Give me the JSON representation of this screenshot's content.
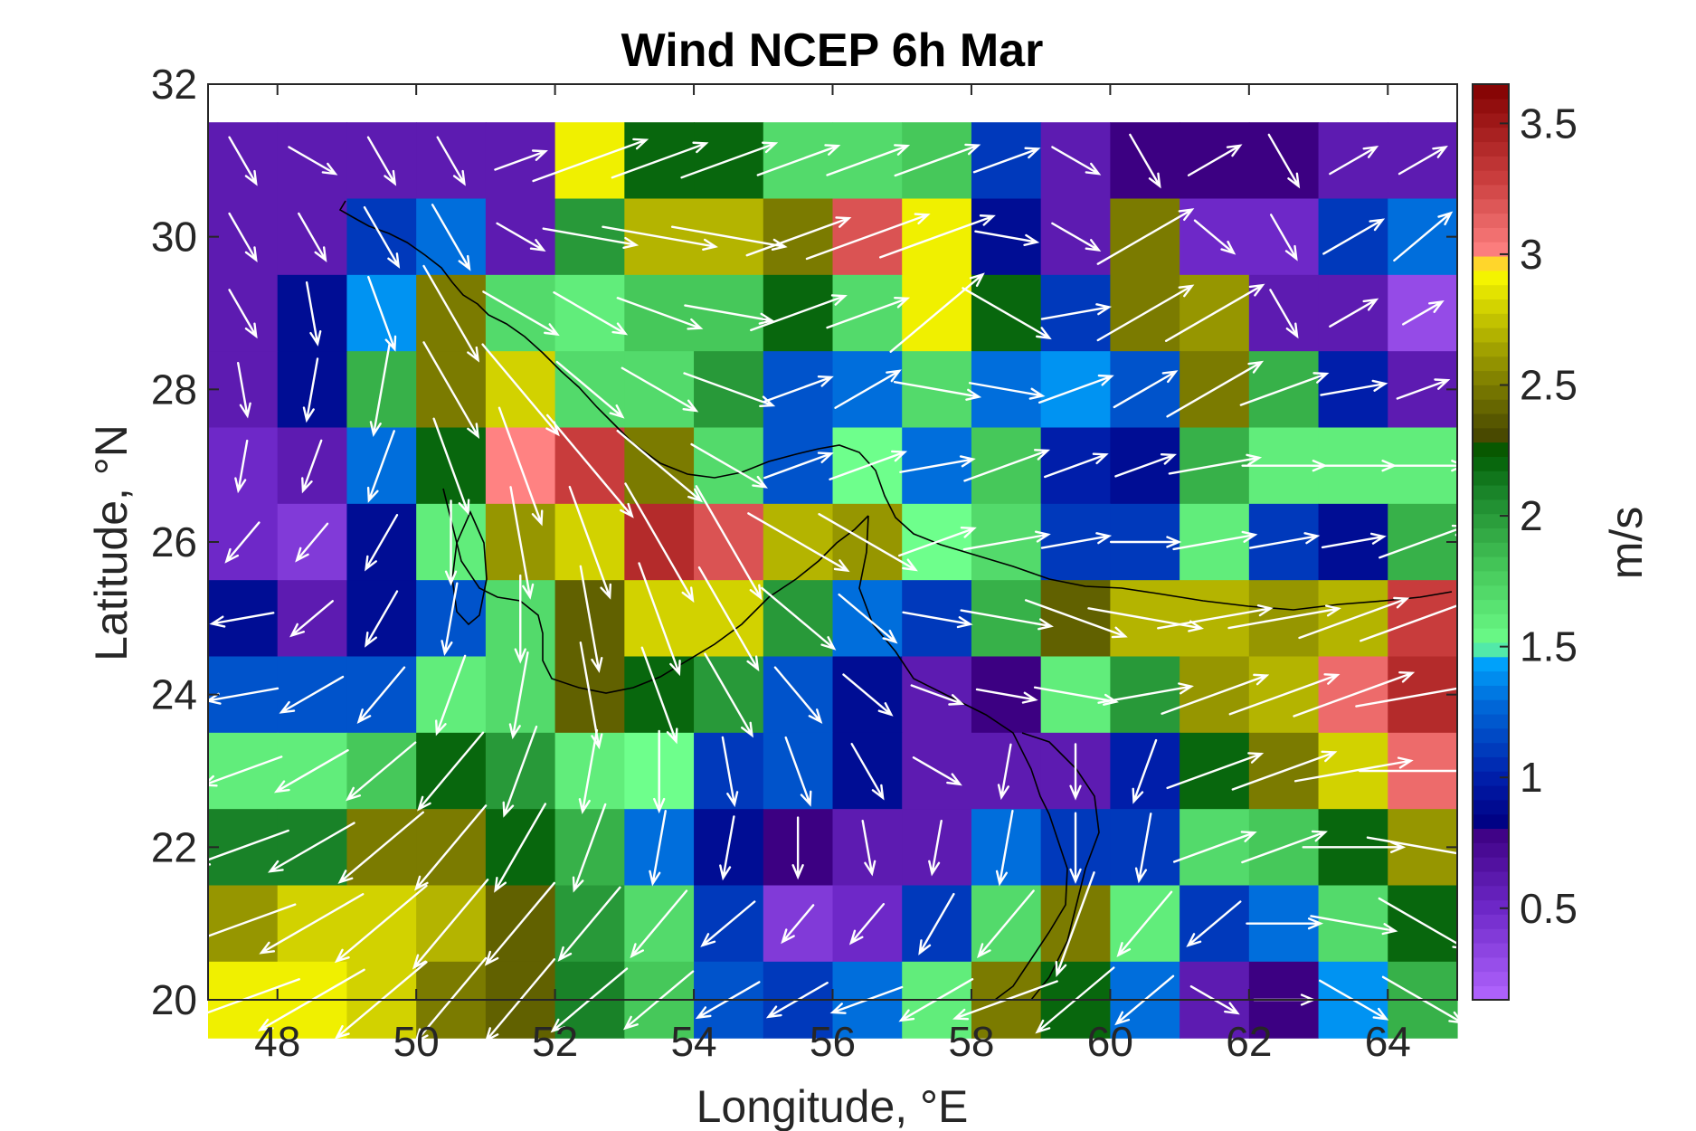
{
  "chart_data": {
    "type": "heatmap",
    "title": "Wind NCEP 6h Mar",
    "xlabel": "Longitude, °E",
    "ylabel": "Latitude, °N",
    "xlim": [
      47,
      65
    ],
    "ylim": [
      20,
      32
    ],
    "x_ticks": [
      "48",
      "50",
      "52",
      "54",
      "56",
      "58",
      "60",
      "62",
      "64"
    ],
    "y_ticks": [
      "20",
      "22",
      "24",
      "26",
      "28",
      "30",
      "32"
    ],
    "colorbar": {
      "label": "m/s",
      "range": [
        0.15,
        3.65
      ],
      "ticks": [
        "0.5",
        "1",
        "1.5",
        "2",
        "2.5",
        "3",
        "3.5"
      ]
    },
    "cell_longitudes": [
      47.5,
      48.5,
      49.5,
      50.5,
      51.5,
      52.5,
      53.5,
      54.5,
      55.5,
      56.5,
      57.5,
      58.5,
      59.5,
      60.5,
      61.5,
      62.5,
      63.5,
      64.5
    ],
    "cell_latitudes": [
      31,
      30,
      29,
      28,
      27,
      26,
      25,
      24,
      23,
      22,
      21,
      20
    ],
    "speed_grid": [
      [
        0.6,
        0.6,
        0.6,
        0.6,
        0.6,
        2.9,
        2.2,
        2.2,
        1.7,
        1.7,
        1.8,
        1.1,
        0.6,
        0.8,
        0.8,
        0.8,
        0.6,
        0.6
      ],
      [
        0.6,
        0.6,
        1.1,
        1.3,
        0.6,
        2.0,
        2.7,
        2.7,
        2.5,
        3.2,
        2.9,
        0.9,
        0.6,
        2.5,
        0.5,
        0.5,
        1.1,
        1.3
      ],
      [
        0.6,
        0.9,
        1.4,
        2.5,
        1.7,
        1.6,
        1.8,
        1.8,
        2.2,
        1.7,
        2.9,
        2.2,
        1.1,
        2.5,
        2.6,
        0.6,
        0.6,
        0.3
      ],
      [
        0.6,
        0.9,
        1.9,
        2.5,
        2.8,
        1.7,
        1.7,
        2.0,
        1.2,
        1.3,
        1.7,
        1.3,
        1.4,
        1.2,
        2.5,
        1.9,
        1.0,
        0.6
      ],
      [
        0.5,
        0.6,
        1.3,
        2.2,
        3.0,
        3.3,
        2.5,
        1.7,
        1.2,
        1.5,
        1.3,
        1.8,
        1.0,
        0.9,
        1.9,
        1.6,
        1.6,
        1.6
      ],
      [
        0.5,
        0.4,
        0.9,
        1.6,
        2.6,
        2.8,
        3.4,
        3.2,
        2.7,
        2.6,
        1.5,
        1.7,
        1.1,
        1.1,
        1.6,
        1.1,
        0.9,
        1.9
      ],
      [
        0.9,
        0.6,
        0.9,
        1.2,
        1.7,
        2.4,
        2.8,
        2.8,
        2.0,
        1.3,
        1.1,
        1.9,
        2.4,
        2.7,
        2.7,
        2.6,
        2.7,
        3.3
      ],
      [
        1.2,
        1.2,
        1.2,
        1.6,
        1.7,
        2.4,
        2.2,
        2.0,
        1.2,
        0.9,
        0.6,
        0.8,
        1.6,
        2.0,
        2.6,
        2.7,
        3.1,
        3.4
      ],
      [
        1.6,
        1.6,
        1.8,
        2.2,
        2.0,
        1.6,
        1.5,
        1.1,
        1.2,
        0.9,
        0.6,
        0.6,
        0.6,
        1.0,
        2.2,
        2.5,
        2.8,
        3.1
      ],
      [
        2.1,
        2.1,
        2.5,
        2.5,
        2.2,
        1.9,
        1.3,
        0.9,
        0.8,
        0.6,
        0.6,
        1.3,
        1.1,
        1.1,
        1.7,
        1.8,
        2.2,
        2.6
      ],
      [
        2.6,
        2.8,
        2.8,
        2.7,
        2.4,
        2.0,
        1.7,
        1.1,
        0.4,
        0.5,
        1.1,
        1.7,
        2.5,
        1.6,
        1.1,
        1.3,
        1.7,
        2.2
      ],
      [
        2.9,
        2.9,
        2.8,
        2.5,
        2.4,
        2.1,
        1.8,
        1.2,
        1.1,
        1.3,
        1.6,
        2.5,
        2.2,
        1.3,
        0.6,
        0.8,
        1.4,
        1.9
      ]
    ],
    "wind_direction_deg": [
      [
        300,
        330,
        300,
        300,
        20,
        20,
        20,
        20,
        20,
        20,
        20,
        20,
        330,
        300,
        30,
        300,
        30,
        30
      ],
      [
        300,
        300,
        300,
        300,
        330,
        350,
        350,
        350,
        20,
        20,
        20,
        350,
        330,
        30,
        320,
        300,
        30,
        40
      ],
      [
        300,
        280,
        290,
        300,
        330,
        330,
        340,
        350,
        20,
        20,
        40,
        330,
        10,
        30,
        30,
        300,
        30,
        30
      ],
      [
        280,
        260,
        260,
        300,
        310,
        320,
        330,
        340,
        20,
        30,
        350,
        350,
        20,
        30,
        30,
        20,
        10,
        20
      ],
      [
        260,
        250,
        250,
        290,
        290,
        310,
        320,
        330,
        20,
        20,
        10,
        20,
        20,
        20,
        10,
        0,
        0,
        0
      ],
      [
        230,
        230,
        240,
        270,
        280,
        290,
        300,
        300,
        330,
        330,
        20,
        10,
        10,
        0,
        10,
        10,
        10,
        20
      ],
      [
        190,
        220,
        240,
        260,
        270,
        280,
        290,
        300,
        320,
        320,
        350,
        350,
        340,
        350,
        10,
        10,
        20,
        20
      ],
      [
        190,
        210,
        230,
        250,
        260,
        280,
        290,
        300,
        310,
        320,
        340,
        350,
        350,
        10,
        20,
        20,
        20,
        10
      ],
      [
        200,
        210,
        220,
        230,
        250,
        260,
        270,
        280,
        290,
        300,
        330,
        260,
        270,
        250,
        20,
        20,
        10,
        0
      ],
      [
        200,
        210,
        220,
        230,
        240,
        250,
        260,
        260,
        270,
        280,
        260,
        260,
        270,
        260,
        20,
        20,
        0,
        350
      ],
      [
        200,
        210,
        220,
        230,
        230,
        230,
        230,
        220,
        230,
        230,
        240,
        230,
        250,
        230,
        220,
        0,
        350,
        330
      ],
      [
        200,
        210,
        220,
        230,
        230,
        220,
        220,
        210,
        210,
        200,
        210,
        200,
        220,
        220,
        330,
        0,
        330,
        330
      ]
    ]
  }
}
